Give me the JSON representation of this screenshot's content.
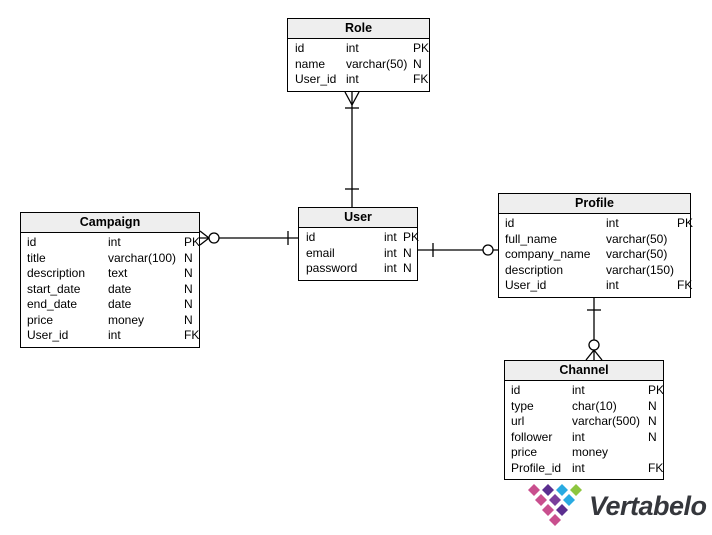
{
  "diagram": {
    "tables": [
      {
        "id": "role",
        "title": "Role",
        "columns": [
          {
            "name": "id",
            "type": "int",
            "flag": "PK"
          },
          {
            "name": "name",
            "type": "varchar(50)",
            "flag": "N"
          },
          {
            "name": "User_id",
            "type": "int",
            "flag": "FK"
          }
        ]
      },
      {
        "id": "campaign",
        "title": "Campaign",
        "columns": [
          {
            "name": "id",
            "type": "int",
            "flag": "PK"
          },
          {
            "name": "title",
            "type": "varchar(100)",
            "flag": "N"
          },
          {
            "name": "description",
            "type": "text",
            "flag": "N"
          },
          {
            "name": "start_date",
            "type": "date",
            "flag": "N"
          },
          {
            "name": "end_date",
            "type": "date",
            "flag": "N"
          },
          {
            "name": "price",
            "type": "money",
            "flag": "N"
          },
          {
            "name": "User_id",
            "type": "int",
            "flag": "FK"
          }
        ]
      },
      {
        "id": "user",
        "title": "User",
        "columns": [
          {
            "name": "id",
            "type": "int",
            "flag": "PK"
          },
          {
            "name": "email",
            "type": "int",
            "flag": "N"
          },
          {
            "name": "password",
            "type": "int",
            "flag": "N"
          }
        ]
      },
      {
        "id": "profile",
        "title": "Profile",
        "columns": [
          {
            "name": "id",
            "type": "int",
            "flag": "PK"
          },
          {
            "name": "full_name",
            "type": "varchar(50)",
            "flag": ""
          },
          {
            "name": "company_name",
            "type": "varchar(50)",
            "flag": ""
          },
          {
            "name": "description",
            "type": "varchar(150)",
            "flag": ""
          },
          {
            "name": "User_id",
            "type": "int",
            "flag": "FK"
          }
        ]
      },
      {
        "id": "channel",
        "title": "Channel",
        "columns": [
          {
            "name": "id",
            "type": "int",
            "flag": "PK"
          },
          {
            "name": "type",
            "type": "char(10)",
            "flag": "N"
          },
          {
            "name": "url",
            "type": "varchar(500)",
            "flag": "N"
          },
          {
            "name": "follower",
            "type": "int",
            "flag": "N"
          },
          {
            "name": "price",
            "type": "money",
            "flag": ""
          },
          {
            "name": "Profile_id",
            "type": "int",
            "flag": "FK"
          }
        ]
      }
    ],
    "relationships": [
      {
        "from": "User",
        "to": "Role",
        "cardinality": "one to one-or-many"
      },
      {
        "from": "User",
        "to": "Campaign",
        "cardinality": "one to zero-or-many"
      },
      {
        "from": "User",
        "to": "Profile",
        "cardinality": "one to zero-or-one"
      },
      {
        "from": "Profile",
        "to": "Channel",
        "cardinality": "one to zero-or-many"
      }
    ]
  },
  "branding": {
    "logo_text": "Vertabelo",
    "logo_colors": {
      "pink": "#c94f8e",
      "purple_dark": "#5b2e90",
      "purple_light": "#7b3f9c",
      "cyan": "#29abe2",
      "green": "#8dc63f",
      "text": "#35373c"
    }
  },
  "style_colors": {
    "table_header_bg": "#eeeeee",
    "table_border": "#000000",
    "canvas_bg": "#ffffff"
  }
}
